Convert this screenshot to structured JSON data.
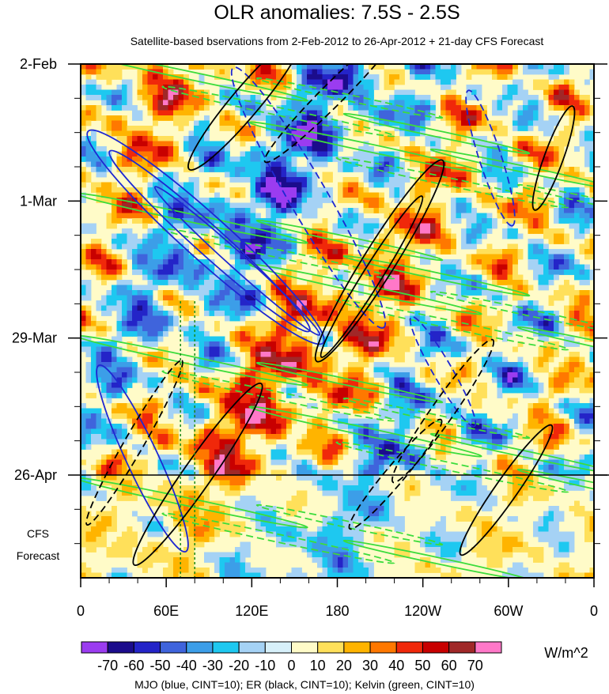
{
  "chart_data": {
    "type": "heatmap",
    "title": "OLR anomalies: 7.5S - 2.5S",
    "subtitle": "Satellite-based bservations from 2-Feb-2012 to 26-Apr-2012 + 21-day CFS Forecast",
    "x_ticks": [
      "0",
      "60E",
      "120E",
      "180",
      "120W",
      "60W",
      "0"
    ],
    "x_tick_values": [
      0,
      60,
      120,
      180,
      240,
      300,
      360
    ],
    "xlim": [
      0,
      360
    ],
    "y_ticks": [
      "2-Feb",
      "1-Mar",
      "29-Mar",
      "26-Apr"
    ],
    "y_tick_values": [
      "2012-02-02",
      "2012-03-01",
      "2012-03-29",
      "2012-04-26"
    ],
    "ylim": [
      "2012-02-02",
      "2012-05-17"
    ],
    "y_reversed": true,
    "observation_end": "2012-04-26",
    "forecast_label_line1": "CFS",
    "forecast_label_line2": "Forecast",
    "forecast_days": 21,
    "colorbar": {
      "labels": [
        "-70",
        "-60",
        "-50",
        "-40",
        "-30",
        "-20",
        "-10",
        "0",
        "10",
        "20",
        "30",
        "40",
        "50",
        "60",
        "70"
      ],
      "colors": [
        "#9b3cf0",
        "#1b0c8c",
        "#2424c8",
        "#3f64dc",
        "#3c9ee8",
        "#1ec8f0",
        "#a5d2f5",
        "#d7f0fa",
        "#fffbc8",
        "#ffe05a",
        "#ffb400",
        "#ff7800",
        "#f0280a",
        "#c80000",
        "#a02828",
        "#ff78c8"
      ],
      "units": "W/m^2"
    },
    "contours": {
      "caption": "MJO (blue, CINT=10); ER (black, CINT=10); Kelvin (green, CINT=10)",
      "mjo_color": "#1e28d2",
      "er_color": "#000000",
      "kelvin_color": "#3cdc3c"
    },
    "vertical_reference_lines": [
      70,
      80
    ]
  }
}
